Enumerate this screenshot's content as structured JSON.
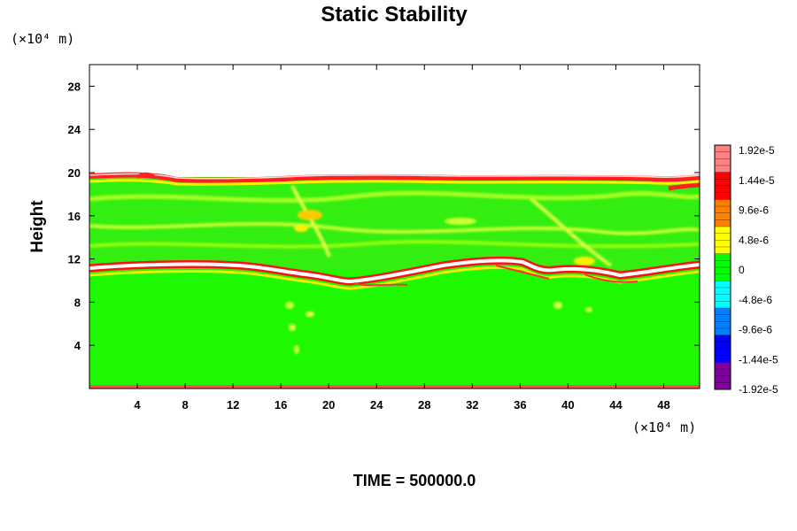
{
  "chart_data": {
    "type": "heatmap",
    "title": "Static Stability",
    "ylabel": "Height",
    "y_unit": "(×10⁴ m)",
    "x_unit": "(×10⁴ m)",
    "xlim": [
      0,
      51
    ],
    "ylim": [
      0,
      30
    ],
    "x_ticks": [
      4,
      8,
      12,
      16,
      20,
      24,
      28,
      32,
      36,
      40,
      44,
      48
    ],
    "y_ticks": [
      4,
      8,
      12,
      16,
      20,
      24,
      28
    ],
    "colorbar": {
      "min": -1.92e-05,
      "max": 1.92e-05,
      "labels": [
        "1.92e-5",
        "1.44e-5",
        "9.6e-6",
        "4.8e-6",
        "0",
        "-4.8e-6",
        "-9.6e-6",
        "-1.44e-5",
        "-1.92e-5"
      ],
      "colors": [
        "#ff8080",
        "#ff0000",
        "#ff8000",
        "#ffff00",
        "#00ff00",
        "#00ffff",
        "#0080ff",
        "#0000ff",
        "#8000a0"
      ]
    },
    "features": {
      "tropopause_upper_height": 19.4,
      "tropopause_lower_height": 11.2,
      "background_value": 0
    },
    "footer": "TIME = 500000.0"
  }
}
